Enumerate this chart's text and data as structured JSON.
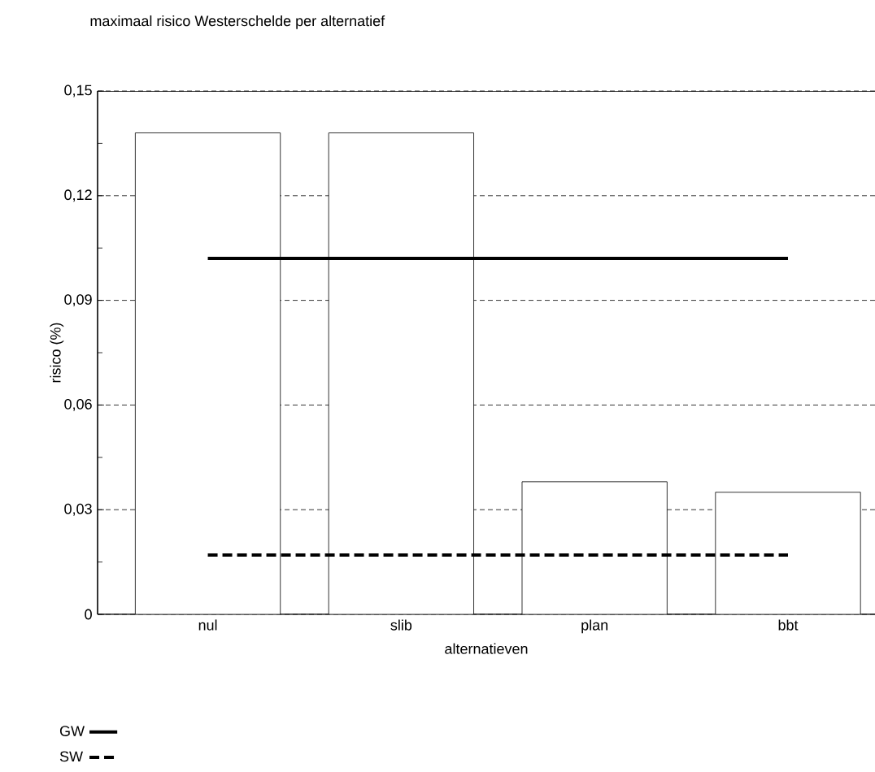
{
  "chart_data": {
    "type": "bar",
    "title": "maximaal risico Westerschelde per alternatief",
    "xlabel": "alternatieven",
    "ylabel": "risico (%)",
    "categories": [
      "nul",
      "slib",
      "plan",
      "bbt"
    ],
    "series": [
      {
        "color": "#ffffff",
        "values": [
          0.138,
          0.138,
          0.038,
          0.035
        ]
      },
      {
        "type": "line",
        "name": "GW",
        "color": "#000000",
        "line_style": "solid",
        "values": [
          0.102,
          0.102,
          0.102,
          0.102
        ]
      },
      {
        "type": "line",
        "name": "SW",
        "color": "#000000",
        "line_style": "dashed",
        "values": [
          0.017,
          0.017,
          0.017,
          0.017
        ]
      }
    ],
    "ylim": [
      0,
      0.15
    ],
    "yticks": [
      0,
      {
        "value": 0.03,
        "label": "0,03"
      },
      {
        "value": 0.06,
        "label": "0,06"
      },
      {
        "value": 0.09,
        "label": "0,09"
      },
      {
        "value": 0.12,
        "label": "0,12"
      },
      {
        "value": 0.15,
        "label": "0,15"
      }
    ],
    "grid": "y",
    "legend": "bottom left",
    "marker": "none"
  }
}
